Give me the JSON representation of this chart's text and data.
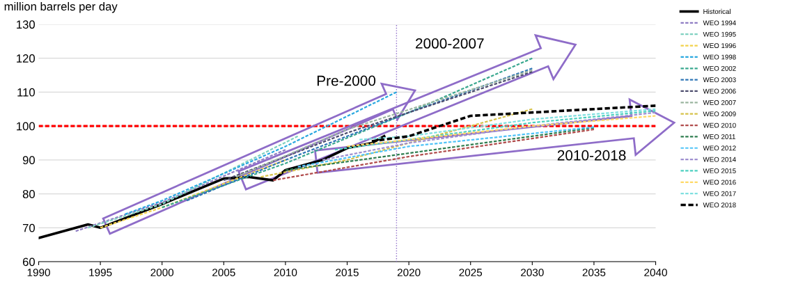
{
  "chart_data": {
    "type": "line",
    "ylabel": "million barrels per day",
    "xlim": [
      1990,
      2040
    ],
    "xticks": [
      1990,
      1995,
      2000,
      2005,
      2010,
      2015,
      2020,
      2025,
      2030,
      2035,
      2040
    ],
    "ylim": [
      60,
      130
    ],
    "yticks": [
      60,
      70,
      80,
      90,
      100,
      110,
      120,
      130
    ],
    "grid": "y",
    "legend": "right",
    "marker": "none",
    "annotations": [
      "Pre-2000",
      "2000-2007",
      "2010-2018"
    ],
    "ref_lines": [
      {
        "axis": "y",
        "value": 100,
        "label": null,
        "color": "#ff0000",
        "line_style": "dashed"
      },
      {
        "axis": "x",
        "value": 2019,
        "label": null,
        "color": "#8e6cc8",
        "line_style": "dotted"
      }
    ],
    "series": [
      {
        "name": "Historical",
        "color": "#000000",
        "line_style": "solid",
        "x": [
          1990,
          1994,
          1995,
          2000,
          2005,
          2007,
          2009,
          2010,
          2013,
          2015,
          2017,
          2018
        ],
        "values": [
          67,
          71,
          70,
          77,
          84.5,
          85,
          84,
          87,
          90,
          93.5,
          95,
          97
        ]
      },
      {
        "name": "WEO 1994",
        "color": "#8e7cc3",
        "line_style": "dashed",
        "x": [
          1993,
          2000,
          2010
        ],
        "values": [
          69,
          77.5,
          93
        ]
      },
      {
        "name": "WEO 1995",
        "color": "#7fd1c0",
        "line_style": "dashed",
        "x": [
          1994,
          2000,
          2011
        ],
        "values": [
          70,
          77,
          97
        ]
      },
      {
        "name": "WEO 1996",
        "color": "#f2d24b",
        "line_style": "dashed",
        "x": [
          1995,
          2000,
          2010
        ],
        "values": [
          70,
          76,
          90
        ]
      },
      {
        "name": "WEO 1998",
        "color": "#29a8e0",
        "line_style": "dashed",
        "x": [
          1997,
          2000,
          2010,
          2019
        ],
        "values": [
          74,
          78,
          94,
          110
        ]
      },
      {
        "name": "WEO 2002",
        "color": "#3aa88f",
        "line_style": "dashed",
        "x": [
          2000,
          2010,
          2020,
          2030
        ],
        "values": [
          76,
          89,
          104,
          120
        ]
      },
      {
        "name": "WEO 2003",
        "color": "#2e75b6",
        "line_style": "dashed",
        "x": [
          2002,
          2010,
          2020,
          2030
        ],
        "values": [
          78,
          90,
          104,
          117
        ]
      },
      {
        "name": "WEO 2006",
        "color": "#4d4d6e",
        "line_style": "dashed",
        "x": [
          2005,
          2015,
          2030
        ],
        "values": [
          84,
          98,
          116
        ]
      },
      {
        "name": "WEO 2007",
        "color": "#9bb5a0",
        "line_style": "dashed",
        "x": [
          2006,
          2015,
          2030
        ],
        "values": [
          85,
          99,
          116.5
        ]
      },
      {
        "name": "WEO 2009",
        "color": "#d6c24a",
        "line_style": "dashed",
        "x": [
          2008,
          2015,
          2030
        ],
        "values": [
          85,
          90,
          105
        ]
      },
      {
        "name": "WEO 2010",
        "color": "#b04a4a",
        "line_style": "dashed",
        "x": [
          2009,
          2020,
          2035
        ],
        "values": [
          84,
          91,
          99
        ]
      },
      {
        "name": "WEO 2011",
        "color": "#2e7d4f",
        "line_style": "dashed",
        "x": [
          2010,
          2020,
          2035
        ],
        "values": [
          87,
          92,
          99.5
        ]
      },
      {
        "name": "WEO 2012",
        "color": "#4fc3f7",
        "line_style": "dashed",
        "x": [
          2011,
          2020,
          2035
        ],
        "values": [
          88,
          94,
          99.7
        ]
      },
      {
        "name": "WEO 2014",
        "color": "#9e8fcf",
        "line_style": "dashed",
        "x": [
          2013,
          2020,
          2030,
          2040
        ],
        "values": [
          90,
          95,
          100,
          104
        ]
      },
      {
        "name": "WEO 2015",
        "color": "#4dd0c0",
        "line_style": "dashed",
        "x": [
          2014,
          2020,
          2030,
          2040
        ],
        "values": [
          93,
          96,
          101,
          104.5
        ]
      },
      {
        "name": "WEO 2016",
        "color": "#ffd966",
        "line_style": "dashed",
        "x": [
          2015,
          2020,
          2030,
          2040
        ],
        "values": [
          94,
          96,
          100,
          103
        ]
      },
      {
        "name": "WEO 2017",
        "color": "#7fe0e0",
        "line_style": "dashed",
        "x": [
          2016,
          2020,
          2030,
          2040
        ],
        "values": [
          96,
          97,
          102,
          105
        ]
      },
      {
        "name": "WEO 2018",
        "color": "#000000",
        "line_style": "dashed",
        "x": [
          2017,
          2020,
          2025,
          2030,
          2040
        ],
        "values": [
          95.5,
          97,
          103,
          104,
          106
        ]
      }
    ]
  }
}
